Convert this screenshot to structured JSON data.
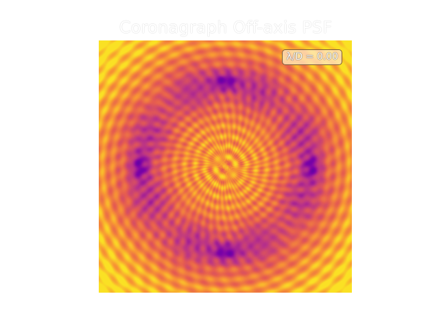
{
  "figure": {
    "title": "Coronagraph Off-axis PSF",
    "annotation": "λ/D = 0.00",
    "colormap": "plasma",
    "colors": {
      "dark": "#7a14a8",
      "mid": "#e8703c",
      "light": "#f9c92a"
    }
  }
}
